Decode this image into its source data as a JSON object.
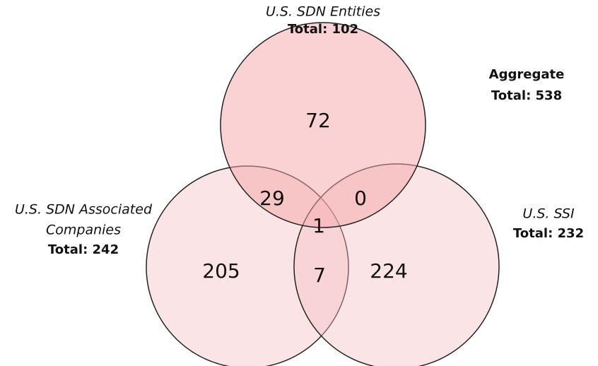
{
  "sets": [
    {
      "name": "U.S. SDN Entities",
      "total": "Total: 102"
    },
    {
      "name": [
        "U.S. SDN Associated",
        "Companies"
      ],
      "total": "Total: 242"
    },
    {
      "name": "U.S. SSI",
      "total": "Total: 232"
    }
  ],
  "aggregate": {
    "title": "Aggregate",
    "total": "Total: 538"
  },
  "regions": {
    "entities_only": "72",
    "entities_associated": "29",
    "entities_ssi": "0",
    "all": "1",
    "associated_only": "205",
    "associated_ssi": "7",
    "ssi_only": "224"
  }
}
